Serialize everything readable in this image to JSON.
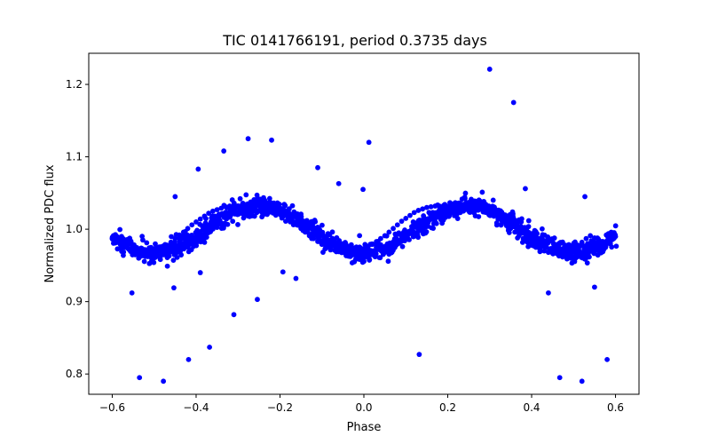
{
  "chart_data": {
    "type": "scatter",
    "title": "TIC 0141766191, period 0.3735 days",
    "xlabel": "Phase",
    "ylabel": "Normalized PDC flux",
    "xlim": [
      -0.656,
      0.656
    ],
    "ylim": [
      0.772,
      1.243
    ],
    "xticks": [
      -0.6,
      -0.4,
      -0.2,
      0.0,
      0.2,
      0.4,
      0.6
    ],
    "xtick_labels": [
      "−0.6",
      "−0.4",
      "−0.2",
      "0.0",
      "0.2",
      "0.4",
      "0.6"
    ],
    "yticks": [
      0.8,
      0.9,
      1.0,
      1.1,
      1.2
    ],
    "ytick_labels": [
      "0.8",
      "0.9",
      "1.0",
      "1.1",
      "1.2"
    ],
    "grid": false,
    "marker_color": "#0000ff",
    "model": {
      "baseline": 1.0,
      "amplitude": 0.032,
      "cycles_per_phase": 2,
      "phase_offset": 0.0,
      "x_range": [
        -0.6,
        0.6
      ]
    },
    "series": [
      {
        "values": [
          [
            -0.6,
            0.987
          ],
          [
            -0.59,
            0.982
          ],
          [
            -0.58,
            0.978
          ],
          [
            -0.57,
            0.975
          ],
          [
            -0.56,
            0.972
          ],
          [
            -0.55,
            0.97
          ],
          [
            -0.54,
            0.968
          ],
          [
            -0.53,
            0.967
          ],
          [
            -0.52,
            0.967
          ],
          [
            -0.51,
            0.968
          ],
          [
            -0.5,
            0.97
          ],
          [
            -0.49,
            0.972
          ],
          [
            -0.48,
            0.975
          ],
          [
            -0.47,
            0.978
          ],
          [
            -0.46,
            0.982
          ],
          [
            -0.45,
            0.987
          ],
          [
            -0.44,
            0.992
          ],
          [
            -0.43,
            0.996
          ],
          [
            -0.42,
            1.001
          ],
          [
            -0.41,
            1.006
          ],
          [
            -0.4,
            1.01
          ],
          [
            -0.39,
            1.014
          ],
          [
            -0.38,
            1.018
          ],
          [
            -0.37,
            1.022
          ],
          [
            -0.36,
            1.025
          ],
          [
            -0.35,
            1.027
          ],
          [
            -0.34,
            1.029
          ],
          [
            -0.33,
            1.031
          ],
          [
            -0.32,
            1.032
          ],
          [
            -0.31,
            1.032
          ],
          [
            -0.3,
            1.031
          ],
          [
            -0.29,
            1.03
          ],
          [
            -0.28,
            1.029
          ],
          [
            -0.27,
            1.027
          ],
          [
            -0.26,
            1.025
          ],
          [
            -0.25,
            1.032
          ],
          [
            -0.24,
            1.031
          ],
          [
            -0.23,
            1.03
          ],
          [
            -0.22,
            1.028
          ],
          [
            -0.21,
            1.026
          ],
          [
            -0.2,
            1.023
          ],
          [
            -0.19,
            1.019
          ],
          [
            -0.18,
            1.015
          ],
          [
            -0.17,
            1.011
          ],
          [
            -0.16,
            1.006
          ],
          [
            -0.15,
            1.001
          ],
          [
            -0.14,
            0.996
          ],
          [
            -0.13,
            0.991
          ],
          [
            -0.12,
            0.987
          ],
          [
            -0.11,
            0.983
          ],
          [
            -0.1,
            0.979
          ],
          [
            -0.09,
            0.976
          ],
          [
            -0.08,
            0.973
          ],
          [
            -0.07,
            0.971
          ],
          [
            -0.06,
            0.969
          ],
          [
            -0.05,
            0.968
          ],
          [
            -0.04,
            0.968
          ],
          [
            -0.03,
            0.968
          ],
          [
            -0.02,
            0.969
          ],
          [
            -0.01,
            0.971
          ],
          [
            0.0,
            0.973
          ],
          [
            0.01,
            0.976
          ],
          [
            0.02,
            0.979
          ],
          [
            0.03,
            0.983
          ],
          [
            0.04,
            0.987
          ],
          [
            0.05,
            0.991
          ],
          [
            0.06,
            0.996
          ],
          [
            0.07,
            1.001
          ],
          [
            0.08,
            1.006
          ],
          [
            0.09,
            1.011
          ],
          [
            0.1,
            1.015
          ],
          [
            0.11,
            1.019
          ],
          [
            0.12,
            1.023
          ],
          [
            0.13,
            1.026
          ],
          [
            0.14,
            1.028
          ],
          [
            0.15,
            1.03
          ],
          [
            0.16,
            1.031
          ],
          [
            0.17,
            1.032
          ],
          [
            0.18,
            1.032
          ],
          [
            0.19,
            1.031
          ],
          [
            0.2,
            1.03
          ],
          [
            0.21,
            1.028
          ],
          [
            0.22,
            1.026
          ],
          [
            0.23,
            1.023
          ],
          [
            0.24,
            1.031
          ],
          [
            0.25,
            1.032
          ],
          [
            0.26,
            1.031
          ],
          [
            0.27,
            1.03
          ],
          [
            0.28,
            1.028
          ],
          [
            0.29,
            1.025
          ],
          [
            0.3,
            1.022
          ],
          [
            0.31,
            1.018
          ],
          [
            0.32,
            1.014
          ],
          [
            0.33,
            1.01
          ],
          [
            0.34,
            1.005
          ],
          [
            0.35,
            1.001
          ],
          [
            0.36,
            0.996
          ],
          [
            0.37,
            0.991
          ],
          [
            0.38,
            0.987
          ],
          [
            0.39,
            0.982
          ],
          [
            0.4,
            0.978
          ],
          [
            0.41,
            0.975
          ],
          [
            0.42,
            0.972
          ],
          [
            0.43,
            0.97
          ],
          [
            0.44,
            0.968
          ],
          [
            0.45,
            0.967
          ],
          [
            0.46,
            0.967
          ],
          [
            0.47,
            0.968
          ],
          [
            0.48,
            0.97
          ],
          [
            0.49,
            0.972
          ],
          [
            0.5,
            0.975
          ],
          [
            0.51,
            0.978
          ],
          [
            0.52,
            0.982
          ],
          [
            0.53,
            0.987
          ],
          [
            0.54,
            0.991
          ],
          [
            0.55,
            0.988
          ],
          [
            0.56,
            0.985
          ],
          [
            0.57,
            0.983
          ],
          [
            0.58,
            0.984
          ],
          [
            0.59,
            0.987
          ],
          [
            0.6,
            0.99
          ],
          [
            -0.553,
            0.912
          ],
          [
            -0.535,
            0.795
          ],
          [
            -0.478,
            0.79
          ],
          [
            -0.453,
            0.919
          ],
          [
            -0.418,
            0.82
          ],
          [
            -0.395,
            1.083
          ],
          [
            -0.368,
            0.837
          ],
          [
            -0.334,
            1.108
          ],
          [
            -0.31,
            0.882
          ],
          [
            -0.276,
            1.125
          ],
          [
            -0.254,
            0.903
          ],
          [
            -0.22,
            1.123
          ],
          [
            -0.193,
            0.941
          ],
          [
            -0.162,
            0.932
          ],
          [
            -0.11,
            1.085
          ],
          [
            -0.06,
            1.063
          ],
          [
            -0.002,
            1.055
          ],
          [
            0.012,
            1.12
          ],
          [
            0.132,
            0.827
          ],
          [
            0.3,
            1.221
          ],
          [
            0.357,
            1.175
          ],
          [
            0.385,
            1.056
          ],
          [
            0.44,
            0.912
          ],
          [
            0.467,
            0.795
          ],
          [
            0.52,
            0.79
          ],
          [
            0.527,
            1.045
          ],
          [
            0.55,
            0.92
          ],
          [
            0.58,
            0.82
          ],
          [
            -0.45,
            1.045
          ],
          [
            -0.39,
            0.94
          ]
        ]
      }
    ]
  }
}
